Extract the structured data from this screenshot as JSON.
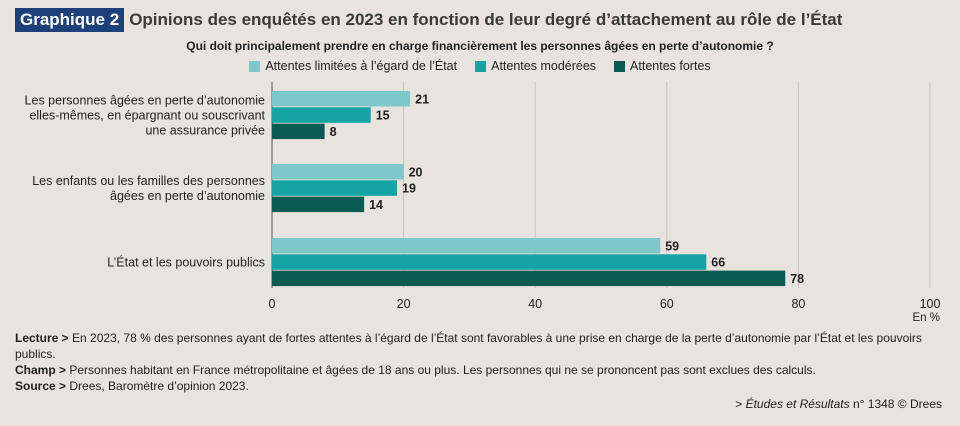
{
  "header": {
    "badge": "Graphique 2",
    "title": "Opinions des enquêtés en 2023 en fonction de leur degré d’attachement au rôle de l’État",
    "subtitle": "Qui doit principalement prendre en charge financièrement les personnes âgées en perte d’autonomie ?"
  },
  "colors": {
    "series_1": "#7ec8c9",
    "series_2": "#15a4a4",
    "series_3": "#0a5c52",
    "badge": "#1d3f7a",
    "gridline": "#c9c4bf"
  },
  "chart_data": {
    "type": "bar",
    "orientation": "horizontal",
    "categories": [
      "Les personnes âgées en perte d’autonomie elles-mêmes, en épargnant ou souscrivant une assurance privée",
      "Les enfants ou les familles des personnes âgées en perte d’autonomie",
      "L’État et les pouvoirs publics"
    ],
    "category_lines": [
      [
        "Les personnes âgées en perte d’autonomie",
        "elles-mêmes, en épargnant ou souscrivant",
        "une assurance privée"
      ],
      [
        "Les enfants ou les familles des personnes",
        "âgées en perte d’autonomie"
      ],
      [
        "L’État et les pouvoirs publics"
      ]
    ],
    "series": [
      {
        "name": "Attentes limitées à l’égard de l’État",
        "values": [
          21,
          20,
          59
        ]
      },
      {
        "name": "Attentes modérées",
        "values": [
          15,
          19,
          66
        ]
      },
      {
        "name": "Attentes fortes",
        "values": [
          8,
          14,
          78
        ]
      }
    ],
    "xlim": [
      0,
      100
    ],
    "xticks": [
      0,
      20,
      40,
      60,
      80,
      100
    ],
    "xunit": "En %",
    "grid": true,
    "legend": "top-center"
  },
  "notes": {
    "lecture_label": "Lecture >",
    "lecture_text": " En 2023, 78 % des personnes ayant de fortes attentes à l’égard de l’État sont favorables à une prise en charge de la perte d’autonomie par l’État et les pouvoirs publics.",
    "champ_label": "Champ >",
    "champ_text": " Personnes habitant en France métropolitaine et âgées de 18 ans ou plus. Les personnes qui ne se prononcent pas sont exclues des calculs.",
    "source_label": "Source >",
    "source_text": " Drees, Baromètre d’opinion 2023."
  },
  "credit": {
    "prefix": "> ",
    "publication": "Études et Résultats",
    "suffix": " n° 1348 © Drees"
  }
}
